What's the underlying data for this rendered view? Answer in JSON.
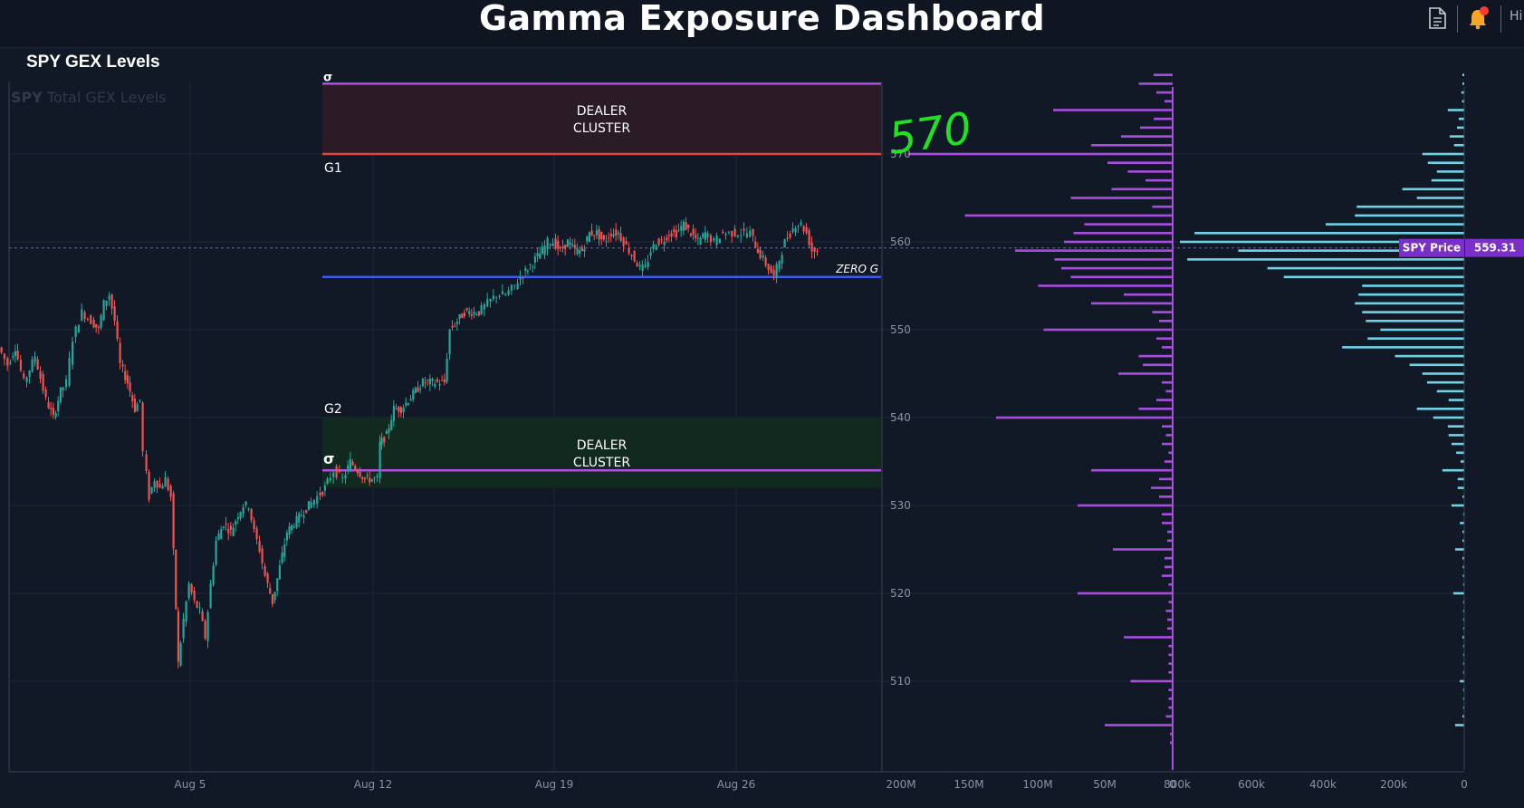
{
  "header": {
    "title": "Gamma Exposure Dashboard",
    "user_text": "Hi",
    "icons": [
      "document-icon",
      "bell-icon"
    ],
    "notification_dot_color": "#ff3b30",
    "bell_color": "#f5a623"
  },
  "section": {
    "title": "SPY GEX Levels"
  },
  "chart_data": {
    "type": "candlestick",
    "watermark": "SPY",
    "watermark_rest": "Total GEX Levels",
    "x_ticks": [
      "Aug 5",
      "Aug 12",
      "Aug 19",
      "Aug 26"
    ],
    "y_ticks": [
      510,
      520,
      530,
      540,
      550,
      560,
      570
    ],
    "y_range": [
      502,
      580
    ],
    "price": {
      "label": "SPY Price",
      "value": "559.31",
      "level": 559.31
    },
    "levels": [
      {
        "name": "upper-sigma-line",
        "label": "σ",
        "value": 578,
        "color": "#b34fe0"
      },
      {
        "name": "g1-line",
        "label": "G1",
        "value": 570,
        "color": "#e0443c"
      },
      {
        "name": "zero-gamma-line",
        "label": "ZERO G",
        "value": 556,
        "color": "#3d5bf0"
      },
      {
        "name": "lower-sigma-line",
        "label": "σ",
        "value": 534,
        "color": "#b34fe0"
      },
      {
        "name": "g2-level",
        "label": "G2",
        "value": 540,
        "color": "#22aa66"
      }
    ],
    "zones": [
      {
        "name": "dealer-cluster-upper",
        "label": [
          "DEALER",
          "CLUSTER"
        ],
        "from": 570,
        "to": 578,
        "color": "#2a1b27"
      },
      {
        "name": "dealer-cluster-lower",
        "label": [
          "DEALER",
          "CLUSTER"
        ],
        "from": 532,
        "to": 540,
        "color": "#12291f"
      }
    ],
    "annotation": "570",
    "candles": {
      "up_color": "#26a69a",
      "down_color": "#ef5350",
      "path": [
        [
          0,
          548
        ],
        [
          10,
          546
        ],
        [
          18,
          548
        ],
        [
          28,
          544
        ],
        [
          40,
          547
        ],
        [
          52,
          542
        ],
        [
          60,
          540
        ],
        [
          68,
          543
        ],
        [
          75,
          544
        ],
        [
          82,
          549
        ],
        [
          92,
          552
        ],
        [
          102,
          551
        ],
        [
          110,
          550
        ],
        [
          116,
          553
        ],
        [
          122,
          554
        ],
        [
          128,
          551
        ],
        [
          134,
          546
        ],
        [
          142,
          544
        ],
        [
          150,
          541
        ],
        [
          156,
          542
        ],
        [
          160,
          536
        ],
        [
          166,
          531
        ],
        [
          172,
          533
        ],
        [
          178,
          532
        ],
        [
          184,
          533
        ],
        [
          190,
          531
        ],
        [
          198,
          512
        ],
        [
          204,
          517
        ],
        [
          210,
          521
        ],
        [
          216,
          519
        ],
        [
          222,
          518
        ],
        [
          228,
          515
        ],
        [
          234,
          521
        ],
        [
          240,
          526
        ],
        [
          248,
          528
        ],
        [
          256,
          527
        ],
        [
          264,
          529
        ],
        [
          270,
          530
        ],
        [
          276,
          530
        ],
        [
          282,
          527
        ],
        [
          288,
          525
        ],
        [
          294,
          522
        ],
        [
          302,
          519
        ],
        [
          310,
          523
        ],
        [
          318,
          527
        ],
        [
          326,
          528
        ],
        [
          334,
          529
        ],
        [
          342,
          530
        ],
        [
          352,
          531
        ],
        [
          360,
          532
        ],
        [
          370,
          534
        ],
        [
          380,
          533
        ],
        [
          388,
          535
        ],
        [
          396,
          534
        ],
        [
          404,
          533
        ],
        [
          412,
          533
        ],
        [
          418,
          533
        ],
        [
          420,
          537
        ],
        [
          428,
          538
        ],
        [
          436,
          541
        ],
        [
          444,
          541
        ],
        [
          452,
          542
        ],
        [
          460,
          543
        ],
        [
          468,
          544
        ],
        [
          476,
          544
        ],
        [
          484,
          544
        ],
        [
          492,
          544
        ],
        [
          498,
          550
        ],
        [
          506,
          551
        ],
        [
          514,
          552
        ],
        [
          522,
          552
        ],
        [
          530,
          552
        ],
        [
          540,
          553
        ],
        [
          550,
          554
        ],
        [
          560,
          554
        ],
        [
          570,
          555
        ],
        [
          576,
          556
        ],
        [
          584,
          557
        ],
        [
          592,
          558
        ],
        [
          600,
          559
        ],
        [
          606,
          560
        ],
        [
          612,
          560
        ],
        [
          620,
          559
        ],
        [
          628,
          560
        ],
        [
          636,
          559
        ],
        [
          644,
          559
        ],
        [
          652,
          561
        ],
        [
          660,
          561
        ],
        [
          668,
          560
        ],
        [
          676,
          561
        ],
        [
          684,
          561
        ],
        [
          690,
          560
        ],
        [
          696,
          559
        ],
        [
          702,
          558
        ],
        [
          708,
          557
        ],
        [
          714,
          557
        ],
        [
          720,
          559
        ],
        [
          726,
          560
        ],
        [
          732,
          560
        ],
        [
          740,
          561
        ],
        [
          748,
          561
        ],
        [
          756,
          562
        ],
        [
          764,
          561
        ],
        [
          772,
          560
        ],
        [
          780,
          561
        ],
        [
          790,
          560
        ],
        [
          800,
          561
        ],
        [
          810,
          561
        ],
        [
          820,
          561
        ],
        [
          830,
          561
        ],
        [
          838,
          559
        ],
        [
          844,
          558
        ],
        [
          850,
          557
        ],
        [
          856,
          556
        ],
        [
          862,
          558
        ],
        [
          868,
          560
        ],
        [
          874,
          561
        ],
        [
          880,
          562
        ],
        [
          886,
          562
        ],
        [
          892,
          561
        ],
        [
          898,
          559
        ],
        [
          904,
          559
        ]
      ]
    },
    "gex_left": {
      "x_ticks": [
        "200M",
        "150M",
        "100M",
        "50M",
        "0"
      ],
      "max": 200,
      "unit": "M",
      "color": "#a94de0",
      "bars": [
        [
          579,
          14
        ],
        [
          578,
          25
        ],
        [
          577,
          12
        ],
        [
          576,
          6
        ],
        [
          575,
          88
        ],
        [
          574,
          14
        ],
        [
          573,
          24
        ],
        [
          572,
          38
        ],
        [
          571,
          60
        ],
        [
          570,
          195
        ],
        [
          569,
          48
        ],
        [
          568,
          33
        ],
        [
          567,
          20
        ],
        [
          566,
          45
        ],
        [
          565,
          75
        ],
        [
          564,
          15
        ],
        [
          563,
          153
        ],
        [
          562,
          65
        ],
        [
          561,
          73
        ],
        [
          560,
          80
        ],
        [
          559,
          116
        ],
        [
          558,
          87
        ],
        [
          557,
          82
        ],
        [
          556,
          75
        ],
        [
          555,
          99
        ],
        [
          554,
          36
        ],
        [
          553,
          60
        ],
        [
          552,
          15
        ],
        [
          551,
          10
        ],
        [
          550,
          95
        ],
        [
          549,
          12
        ],
        [
          548,
          8
        ],
        [
          547,
          25
        ],
        [
          546,
          22
        ],
        [
          545,
          40
        ],
        [
          544,
          8
        ],
        [
          543,
          5
        ],
        [
          542,
          12
        ],
        [
          541,
          25
        ],
        [
          540,
          130
        ],
        [
          539,
          8
        ],
        [
          538,
          5
        ],
        [
          537,
          8
        ],
        [
          536,
          3
        ],
        [
          535,
          6
        ],
        [
          534,
          60
        ],
        [
          533,
          10
        ],
        [
          532,
          16
        ],
        [
          531,
          10
        ],
        [
          530,
          70
        ],
        [
          529,
          8
        ],
        [
          528,
          8
        ],
        [
          527,
          4
        ],
        [
          526,
          4
        ],
        [
          525,
          44
        ],
        [
          524,
          6
        ],
        [
          523,
          6
        ],
        [
          522,
          8
        ],
        [
          521,
          3
        ],
        [
          520,
          70
        ],
        [
          519,
          3
        ],
        [
          518,
          5
        ],
        [
          517,
          4
        ],
        [
          516,
          4
        ],
        [
          515,
          36
        ],
        [
          514,
          3
        ],
        [
          513,
          3
        ],
        [
          512,
          3
        ],
        [
          511,
          3
        ],
        [
          510,
          31
        ],
        [
          509,
          3
        ],
        [
          508,
          3
        ],
        [
          507,
          3
        ],
        [
          506,
          5
        ],
        [
          505,
          50
        ],
        [
          504,
          2
        ],
        [
          503,
          2
        ]
      ]
    },
    "gex_right": {
      "x_ticks": [
        "800k",
        "600k",
        "400k",
        "200k",
        "0"
      ],
      "max": 800,
      "unit": "k",
      "color": "#6fd3e6",
      "bars": [
        [
          579,
          5
        ],
        [
          578,
          5
        ],
        [
          577,
          8
        ],
        [
          576,
          6
        ],
        [
          575,
          45
        ],
        [
          574,
          15
        ],
        [
          573,
          20
        ],
        [
          572,
          40
        ],
        [
          571,
          28
        ],
        [
          570,
          115
        ],
        [
          569,
          100
        ],
        [
          568,
          75
        ],
        [
          567,
          90
        ],
        [
          566,
          170
        ],
        [
          565,
          130
        ],
        [
          564,
          295
        ],
        [
          563,
          300
        ],
        [
          562,
          380
        ],
        [
          561,
          740
        ],
        [
          560,
          780
        ],
        [
          559,
          620
        ],
        [
          558,
          760
        ],
        [
          557,
          540
        ],
        [
          556,
          495
        ],
        [
          555,
          280
        ],
        [
          554,
          290
        ],
        [
          553,
          300
        ],
        [
          552,
          280
        ],
        [
          551,
          270
        ],
        [
          550,
          230
        ],
        [
          549,
          265
        ],
        [
          548,
          335
        ],
        [
          547,
          190
        ],
        [
          546,
          150
        ],
        [
          545,
          115
        ],
        [
          544,
          102
        ],
        [
          543,
          75
        ],
        [
          542,
          43
        ],
        [
          541,
          130
        ],
        [
          540,
          85
        ],
        [
          539,
          45
        ],
        [
          538,
          43
        ],
        [
          537,
          35
        ],
        [
          536,
          22
        ],
        [
          535,
          10
        ],
        [
          534,
          60
        ],
        [
          533,
          18
        ],
        [
          532,
          18
        ],
        [
          531,
          5
        ],
        [
          530,
          35
        ],
        [
          529,
          3
        ],
        [
          528,
          12
        ],
        [
          527,
          5
        ],
        [
          526,
          5
        ],
        [
          525,
          25
        ],
        [
          524,
          5
        ],
        [
          523,
          4
        ],
        [
          522,
          4
        ],
        [
          521,
          3
        ],
        [
          520,
          30
        ],
        [
          519,
          3
        ],
        [
          518,
          3
        ],
        [
          517,
          3
        ],
        [
          516,
          3
        ],
        [
          515,
          5
        ],
        [
          514,
          3
        ],
        [
          513,
          3
        ],
        [
          512,
          3
        ],
        [
          511,
          3
        ],
        [
          510,
          12
        ],
        [
          509,
          3
        ],
        [
          508,
          3
        ],
        [
          507,
          3
        ],
        [
          506,
          5
        ],
        [
          505,
          25
        ]
      ]
    }
  }
}
